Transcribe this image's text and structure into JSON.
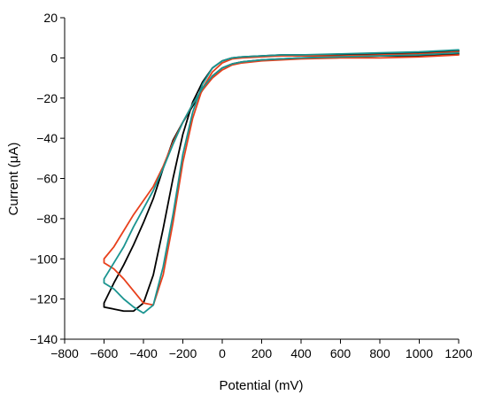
{
  "chart_data": {
    "type": "line",
    "title": "",
    "xlabel": "Potential (mV)",
    "ylabel": "Current (μA)",
    "xlim": [
      -800,
      1200
    ],
    "ylim": [
      -140,
      20
    ],
    "xticks": [
      -800,
      -600,
      -400,
      -200,
      0,
      200,
      400,
      600,
      800,
      1000,
      1200
    ],
    "yticks": [
      -140,
      -120,
      -100,
      -80,
      -60,
      -40,
      -20,
      0,
      20
    ],
    "grid": false,
    "legend": "none",
    "series": [
      {
        "color": "#000000",
        "x": [
          1200,
          1000,
          800,
          600,
          400,
          300,
          200,
          100,
          50,
          0,
          -50,
          -100,
          -150,
          -200,
          -250,
          -300,
          -350,
          -400,
          -450,
          -500,
          -550,
          -600,
          -600,
          -550,
          -500,
          -450,
          -400,
          -350,
          -300,
          -250,
          -200,
          -150,
          -100,
          -50,
          0,
          50,
          100,
          200,
          300,
          400,
          600,
          800,
          1000,
          1200
        ],
        "y": [
          2,
          1,
          1,
          0.5,
          0,
          -0.5,
          -1,
          -2,
          -3,
          -5,
          -9,
          -16,
          -24,
          -32,
          -41,
          -55,
          -70,
          -82,
          -93,
          -103,
          -112,
          -122,
          -124,
          -125,
          -126,
          -126,
          -122,
          -108,
          -85,
          -60,
          -38,
          -22,
          -12,
          -5,
          -1.5,
          0,
          0.5,
          1,
          1.5,
          1.5,
          1.5,
          2,
          2.5,
          3.5
        ]
      },
      {
        "color": "#e8401c",
        "x": [
          1200,
          1000,
          800,
          600,
          400,
          300,
          200,
          100,
          50,
          0,
          -50,
          -100,
          -150,
          -200,
          -250,
          -300,
          -350,
          -400,
          -450,
          -500,
          -550,
          -600,
          -600,
          -550,
          -500,
          -450,
          -400,
          -350,
          -300,
          -250,
          -200,
          -150,
          -100,
          -50,
          0,
          50,
          100,
          200,
          300,
          400,
          600,
          800,
          1000,
          1200
        ],
        "y": [
          1.5,
          0.5,
          0,
          0,
          -0.5,
          -1,
          -1.5,
          -2.5,
          -3.5,
          -6,
          -10,
          -16,
          -23,
          -32,
          -42,
          -54,
          -64,
          -71,
          -78,
          -86,
          -94,
          -100,
          -102,
          -105,
          -110,
          -116,
          -122,
          -123,
          -108,
          -82,
          -52,
          -30,
          -15,
          -7,
          -2.5,
          -0.5,
          0,
          0.5,
          1,
          1,
          1,
          1.5,
          2,
          3
        ]
      },
      {
        "color": "#1a9490",
        "x": [
          1200,
          1000,
          800,
          600,
          400,
          300,
          200,
          100,
          50,
          0,
          -50,
          -100,
          -150,
          -200,
          -250,
          -300,
          -350,
          -400,
          -450,
          -500,
          -550,
          -600,
          -600,
          -550,
          -500,
          -450,
          -400,
          -350,
          -300,
          -250,
          -200,
          -150,
          -100,
          -50,
          0,
          50,
          100,
          200,
          300,
          400,
          600,
          800,
          1000,
          1200
        ],
        "y": [
          2.5,
          1.5,
          1,
          0.5,
          0,
          -0.5,
          -1,
          -2,
          -3,
          -5,
          -9,
          -15,
          -23,
          -32,
          -43,
          -55,
          -66,
          -75,
          -84,
          -94,
          -102,
          -110,
          -112,
          -115,
          -120,
          -124,
          -127,
          -123,
          -104,
          -78,
          -48,
          -27,
          -13,
          -5,
          -1.5,
          0,
          0.5,
          1,
          1.5,
          1.5,
          2,
          2.5,
          3,
          4
        ]
      }
    ]
  }
}
